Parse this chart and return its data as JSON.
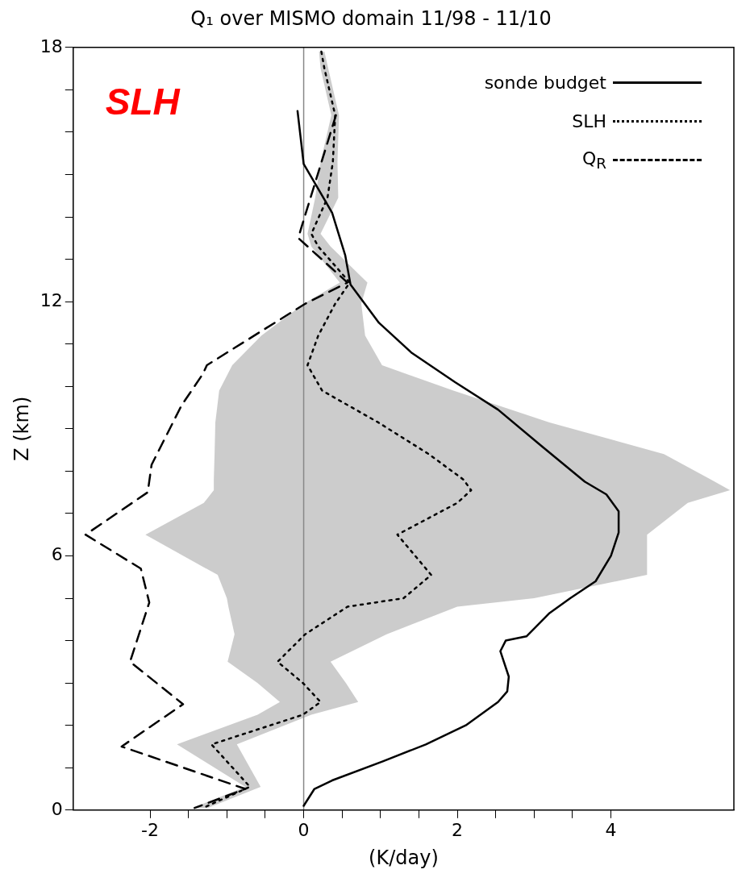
{
  "chart_data": {
    "type": "line",
    "title": "Q₁ over MISMO domain 11/98 - 11/10",
    "xlabel": "(K/day)",
    "ylabel": "Z (km)",
    "orientation": "horizontal",
    "marker": "none",
    "grid": false,
    "legend": "top right",
    "annotations": [
      "SLH"
    ],
    "xlim": [
      -3,
      5.6
    ],
    "xticks": [
      -2,
      {
        "value": -1.5,
        "label": null
      },
      {
        "value": -1,
        "label": null
      },
      {
        "value": -0.5,
        "label": null
      },
      0,
      {
        "value": 0.5,
        "label": null
      },
      {
        "value": 1,
        "label": null
      },
      {
        "value": 1.5,
        "label": null
      },
      2,
      {
        "value": 2.5,
        "label": null
      },
      {
        "value": 3,
        "label": null
      },
      {
        "value": 3.5,
        "label": null
      },
      4
    ],
    "ylim": [
      0,
      18
    ],
    "yticks": [
      0,
      {
        "value": 1,
        "label": null
      },
      {
        "value": 2,
        "label": null
      },
      {
        "value": 3,
        "label": null
      },
      {
        "value": 4,
        "label": null
      },
      {
        "value": 5,
        "label": null
      },
      6,
      {
        "value": 7,
        "label": null
      },
      {
        "value": 8,
        "label": null
      },
      {
        "value": 9,
        "label": null
      },
      {
        "value": 10,
        "label": null
      },
      {
        "value": 11,
        "label": null
      },
      12,
      {
        "value": 13,
        "label": null
      },
      {
        "value": 14,
        "label": null
      },
      {
        "value": 15,
        "label": null
      },
      {
        "value": 16,
        "label": null
      },
      {
        "value": 17,
        "label": null
      },
      18
    ],
    "ref_lines": [
      {
        "axis": "x",
        "value": 0,
        "color": "#888888",
        "line_style": "solid"
      }
    ],
    "series": [
      {
        "name": "sonde budget",
        "color": "#000000",
        "line_style": "solid",
        "x": [
          16.5,
          15.25,
          14.1,
          13.1,
          12.4,
          11.5,
          10.8,
          10.1,
          9.45,
          8.6,
          7.75,
          7.45,
          7.05,
          6.55,
          6.0,
          5.4,
          5.0,
          4.65,
          4.1,
          4.0,
          3.75,
          3.15,
          2.8,
          2.55,
          2.0,
          1.55,
          1.15,
          0.7,
          0.5,
          0.1
        ],
        "values": [
          -0.08,
          0,
          0.37,
          0.54,
          0.61,
          0.98,
          1.4,
          1.97,
          2.53,
          3.09,
          3.66,
          3.94,
          4.1,
          4.1,
          4.0,
          3.8,
          3.47,
          3.2,
          2.9,
          2.63,
          2.56,
          2.67,
          2.65,
          2.53,
          2.11,
          1.59,
          1.03,
          0.37,
          0.14,
          0
        ]
      },
      {
        "name": "SLH",
        "color": "#000000",
        "line_style": "dotted",
        "x": [
          17.9,
          17.5,
          16.4,
          15.3,
          14.45,
          13.6,
          13.3,
          12.45,
          11.95,
          11.2,
          10.5,
          9.9,
          9.15,
          8.4,
          7.8,
          7.55,
          7.25,
          6.5,
          5.55,
          5.0,
          4.8,
          4.15,
          3.5,
          3.0,
          2.55,
          2.25,
          1.55,
          0.55,
          0.05
        ],
        "values": [
          0.23,
          0.27,
          0.41,
          0.38,
          0.31,
          0.1,
          0.19,
          0.6,
          0.41,
          0.19,
          0.05,
          0.24,
          0.97,
          1.63,
          2.08,
          2.18,
          2.0,
          1.22,
          1.66,
          1.3,
          0.57,
          0.02,
          -0.34,
          -0.01,
          0.22,
          -0.01,
          -1.2,
          -0.7,
          -1.31
        ],
        "lower": [
          0.2,
          0.22,
          0.36,
          0.22,
          0.15,
          0.05,
          0.1,
          0.47,
          0.0,
          -0.55,
          -0.93,
          -1.1,
          -1.15,
          -1.16,
          -1.17,
          -1.17,
          -1.3,
          -2.06,
          -1.12,
          -1.0,
          -0.98,
          -0.9,
          -0.99,
          -0.6,
          -0.31,
          -0.6,
          -1.65,
          -0.76,
          -1.45
        ],
        "upper": [
          0.27,
          0.32,
          0.46,
          0.44,
          0.45,
          0.22,
          0.35,
          0.83,
          0.75,
          0.8,
          1.02,
          1.95,
          3.2,
          4.69,
          5.3,
          5.55,
          5.0,
          4.47,
          4.47,
          3.0,
          2.0,
          1.08,
          0.35,
          0.55,
          0.71,
          0.1,
          -0.87,
          -0.56,
          -1.25
        ]
      },
      {
        "name": "Q$_{R}$",
        "color": "#000000",
        "line_style": "dashed",
        "x": [
          16.4,
          13.75,
          13.5,
          12.45,
          11.95,
          10.5,
          10.3,
          9.55,
          8.15,
          7.5,
          6.5,
          5.7,
          4.9,
          3.5,
          2.5,
          1.5,
          0.5,
          0.05
        ],
        "values": [
          0.42,
          -0.03,
          -0.07,
          0.57,
          0.02,
          -1.26,
          -1.31,
          -1.59,
          -1.98,
          -2.03,
          -2.84,
          -2.12,
          -2.01,
          -2.26,
          -1.57,
          -2.37,
          -0.76,
          -1.42
        ]
      }
    ]
  }
}
